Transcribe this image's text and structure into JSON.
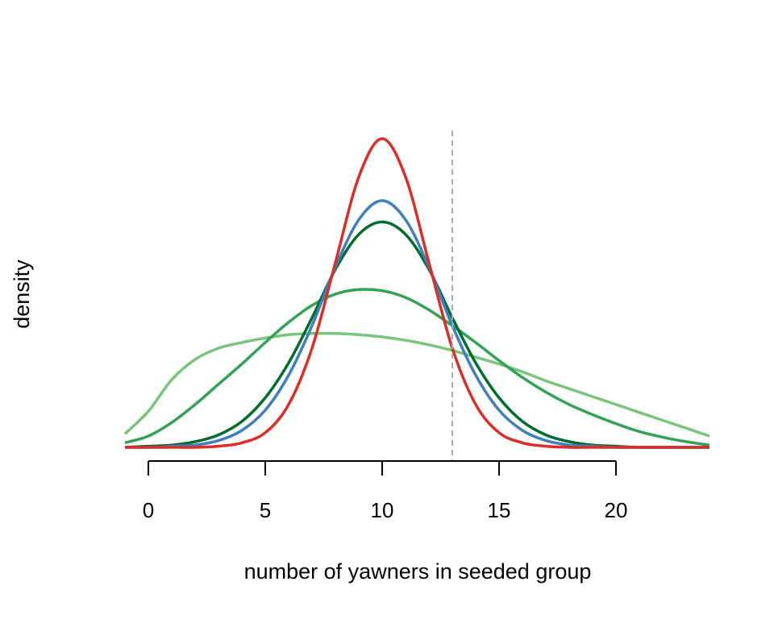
{
  "chart_data": {
    "type": "line",
    "xlabel": "number of yawners in seeded group",
    "ylabel": "density",
    "xlim": [
      -1,
      24
    ],
    "x_ticks": [
      0,
      5,
      10,
      15,
      20
    ],
    "x_tick_labels": [
      "0",
      "5",
      "10",
      "15",
      "20"
    ],
    "y_ticks_shown": false,
    "grid": false,
    "legend": "none",
    "reference_line": {
      "x": 13,
      "style": "dashed",
      "color": "#aaaaaa"
    },
    "series": [
      {
        "color": "#78c679",
        "peak_x": 7.5,
        "values": [
          [
            -1,
            0.012
          ],
          [
            0,
            0.032
          ],
          [
            1,
            0.06
          ],
          [
            2,
            0.078
          ],
          [
            3,
            0.088
          ],
          [
            4,
            0.093
          ],
          [
            5,
            0.097
          ],
          [
            6,
            0.1
          ],
          [
            7,
            0.101
          ],
          [
            8,
            0.101
          ],
          [
            9,
            0.1
          ],
          [
            10,
            0.098
          ],
          [
            11,
            0.095
          ],
          [
            12,
            0.091
          ],
          [
            13,
            0.086
          ],
          [
            14,
            0.08
          ],
          [
            15,
            0.074
          ],
          [
            16,
            0.067
          ],
          [
            17,
            0.059
          ],
          [
            18,
            0.052
          ],
          [
            19,
            0.045
          ],
          [
            20,
            0.038
          ],
          [
            21,
            0.031
          ],
          [
            22,
            0.024
          ],
          [
            23,
            0.017
          ],
          [
            24,
            0.01
          ]
        ]
      },
      {
        "color": "#31a354",
        "peak_x": 9.2,
        "values": [
          [
            -1,
            0.004
          ],
          [
            0,
            0.01
          ],
          [
            1,
            0.022
          ],
          [
            2,
            0.038
          ],
          [
            3,
            0.056
          ],
          [
            4,
            0.074
          ],
          [
            5,
            0.093
          ],
          [
            6,
            0.111
          ],
          [
            7,
            0.126
          ],
          [
            8,
            0.136
          ],
          [
            9,
            0.14
          ],
          [
            10,
            0.139
          ],
          [
            11,
            0.133
          ],
          [
            12,
            0.122
          ],
          [
            13,
            0.108
          ],
          [
            14,
            0.093
          ],
          [
            15,
            0.077
          ],
          [
            16,
            0.062
          ],
          [
            17,
            0.049
          ],
          [
            18,
            0.038
          ],
          [
            19,
            0.029
          ],
          [
            20,
            0.021
          ],
          [
            21,
            0.014
          ],
          [
            22,
            0.009
          ],
          [
            23,
            0.005
          ],
          [
            24,
            0.002
          ]
        ]
      },
      {
        "color": "#006d2c",
        "peak_x": 10,
        "values": [
          [
            -1,
            0.0
          ],
          [
            0,
            0.001
          ],
          [
            1,
            0.002
          ],
          [
            2,
            0.005
          ],
          [
            3,
            0.011
          ],
          [
            4,
            0.023
          ],
          [
            5,
            0.044
          ],
          [
            6,
            0.075
          ],
          [
            7,
            0.115
          ],
          [
            8,
            0.158
          ],
          [
            9,
            0.189
          ],
          [
            10,
            0.2
          ],
          [
            11,
            0.189
          ],
          [
            12,
            0.158
          ],
          [
            13,
            0.115
          ],
          [
            14,
            0.075
          ],
          [
            15,
            0.044
          ],
          [
            16,
            0.023
          ],
          [
            17,
            0.011
          ],
          [
            18,
            0.005
          ],
          [
            19,
            0.002
          ],
          [
            20,
            0.001
          ],
          [
            21,
            0.0
          ],
          [
            22,
            0.0
          ],
          [
            23,
            0.0
          ],
          [
            24,
            0.0
          ]
        ]
      },
      {
        "color": "#3f7fbf",
        "peak_x": 10,
        "values": [
          [
            -1,
            0.0
          ],
          [
            0,
            0.0
          ],
          [
            1,
            0.001
          ],
          [
            2,
            0.002
          ],
          [
            3,
            0.006
          ],
          [
            4,
            0.015
          ],
          [
            5,
            0.033
          ],
          [
            6,
            0.064
          ],
          [
            7,
            0.108
          ],
          [
            8,
            0.16
          ],
          [
            9,
            0.202
          ],
          [
            10,
            0.219
          ],
          [
            11,
            0.202
          ],
          [
            12,
            0.16
          ],
          [
            13,
            0.108
          ],
          [
            14,
            0.064
          ],
          [
            15,
            0.033
          ],
          [
            16,
            0.015
          ],
          [
            17,
            0.006
          ],
          [
            18,
            0.002
          ],
          [
            19,
            0.001
          ],
          [
            20,
            0.0
          ],
          [
            21,
            0.0
          ],
          [
            22,
            0.0
          ],
          [
            23,
            0.0
          ],
          [
            24,
            0.0
          ]
        ]
      },
      {
        "color": "#de2d26",
        "peak_x": 10,
        "values": [
          [
            -1,
            0.0
          ],
          [
            0,
            0.0
          ],
          [
            1,
            0.0
          ],
          [
            2,
            0.0
          ],
          [
            3,
            0.001
          ],
          [
            4,
            0.004
          ],
          [
            5,
            0.013
          ],
          [
            6,
            0.038
          ],
          [
            7,
            0.088
          ],
          [
            8,
            0.164
          ],
          [
            9,
            0.24
          ],
          [
            10,
            0.274
          ],
          [
            11,
            0.24
          ],
          [
            12,
            0.164
          ],
          [
            13,
            0.088
          ],
          [
            14,
            0.038
          ],
          [
            15,
            0.013
          ],
          [
            16,
            0.004
          ],
          [
            17,
            0.001
          ],
          [
            18,
            0.0
          ],
          [
            19,
            0.0
          ],
          [
            20,
            0.0
          ],
          [
            21,
            0.0
          ],
          [
            22,
            0.0
          ],
          [
            23,
            0.0
          ],
          [
            24,
            0.0
          ]
        ]
      }
    ]
  }
}
